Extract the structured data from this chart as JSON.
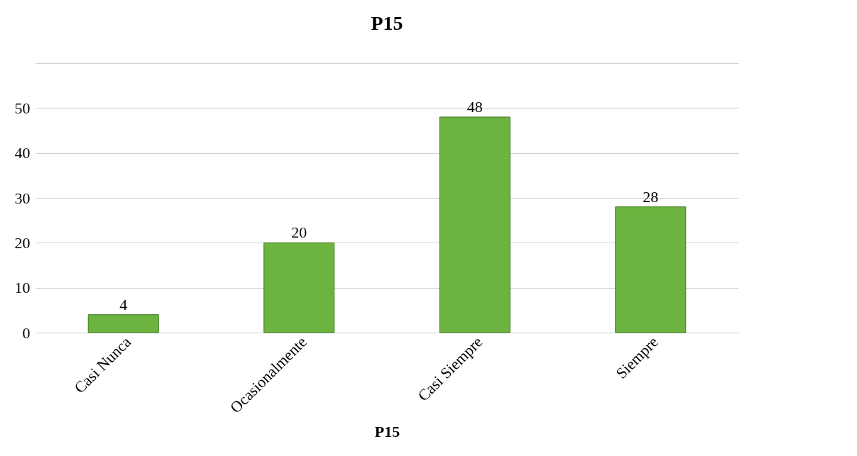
{
  "chart_data": {
    "type": "bar",
    "title": "P15",
    "xlabel": "P15",
    "categories": [
      "Casi Nunca",
      "Ocasionalmente",
      "Casi Siempre",
      "Siempre"
    ],
    "values": [
      4,
      20,
      48,
      28
    ],
    "color": "#6db33f",
    "ylim": [
      0,
      60
    ],
    "yticks": [
      0,
      10,
      20,
      30,
      40,
      50,
      {
        "value": 60,
        "label": null
      }
    ],
    "grid": "y",
    "data_labels": true
  }
}
